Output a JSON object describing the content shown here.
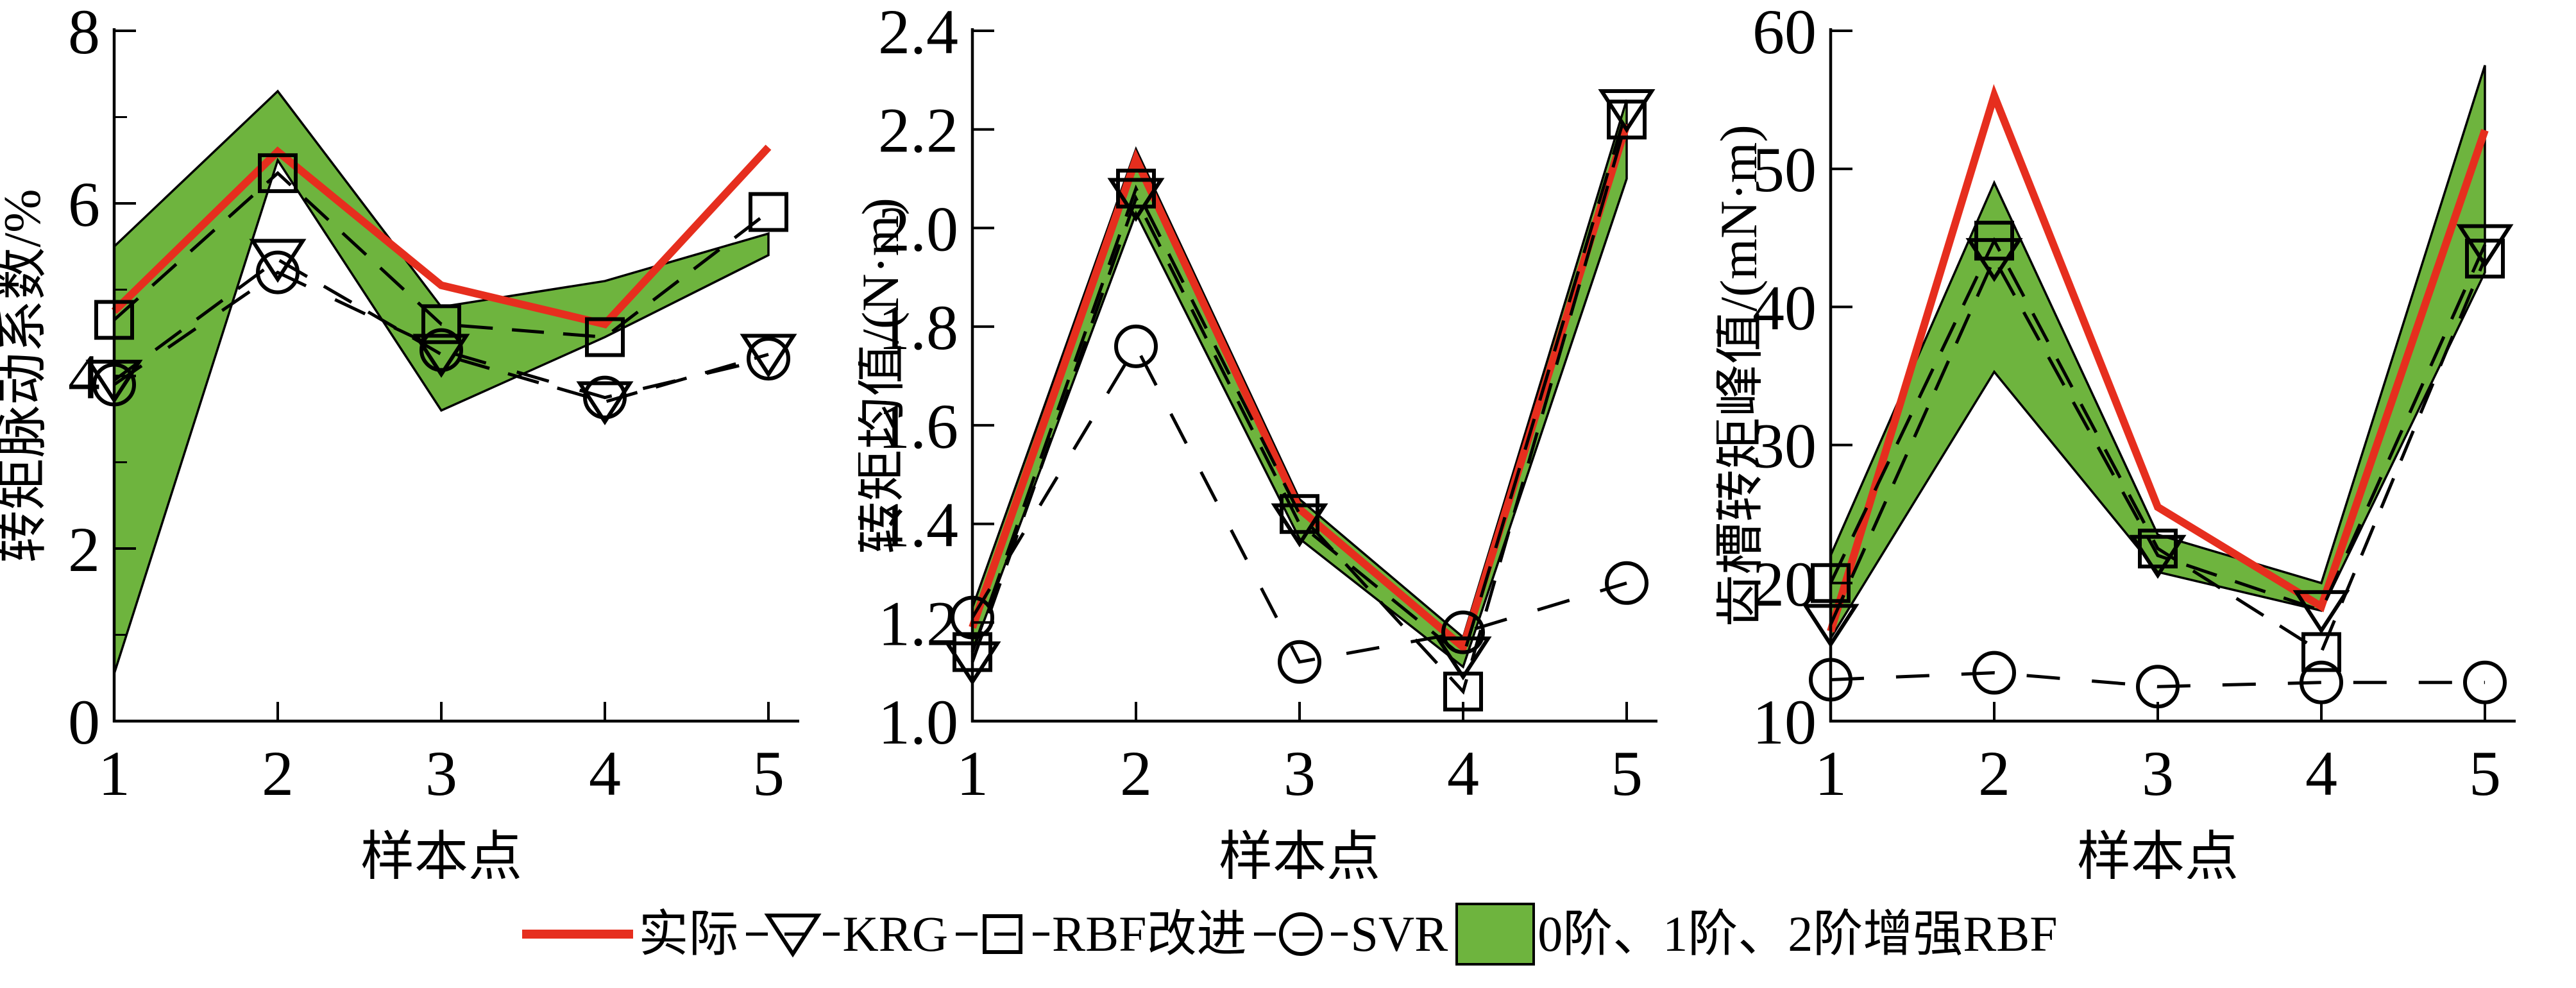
{
  "colors": {
    "actual": "#e62e1e",
    "band_fill": "#6eb43e",
    "band_stroke": "#000000",
    "line": "#000000",
    "background": "#ffffff"
  },
  "legend": {
    "items": [
      {
        "label": "实际",
        "type": "line"
      },
      {
        "label": "KRG",
        "type": "marker",
        "marker": "triangle-down"
      },
      {
        "label": "RBF改进",
        "type": "marker",
        "marker": "square"
      },
      {
        "label": "SVR",
        "type": "marker",
        "marker": "circle"
      },
      {
        "label": "0阶、1阶、2阶增强RBF",
        "type": "band"
      }
    ]
  },
  "chart_data": [
    {
      "type": "line",
      "title": "",
      "xlabel": "样本点",
      "ylabel": "转矩脉动系数/%",
      "categories": [
        "1",
        "2",
        "3",
        "4",
        "5"
      ],
      "ylim": [
        0,
        8
      ],
      "yticks": [
        {
          "v": 0,
          "label": "0"
        },
        {
          "v": 2,
          "label": "2"
        },
        {
          "v": 4,
          "label": "4"
        },
        {
          "v": 6,
          "label": "6"
        },
        {
          "v": 8,
          "label": "8"
        }
      ],
      "minor_yticks": [
        1,
        3,
        5,
        7
      ],
      "grid": false,
      "series": [
        {
          "name": "实际",
          "style": "solid",
          "marker": "none",
          "values": [
            4.75,
            6.6,
            5.05,
            4.6,
            6.65
          ]
        },
        {
          "name": "KRG",
          "style": "dashed",
          "marker": "triangle-down",
          "values": [
            3.95,
            5.35,
            4.25,
            3.7,
            4.25
          ]
        },
        {
          "name": "RBF改进",
          "style": "dashed",
          "marker": "square",
          "values": [
            4.65,
            6.35,
            4.6,
            4.45,
            5.9
          ]
        },
        {
          "name": "SVR",
          "style": "dashed",
          "marker": "circle",
          "values": [
            3.9,
            5.2,
            4.3,
            3.75,
            4.2
          ]
        }
      ],
      "band": {
        "name": "0阶、1阶、2阶增强RBF",
        "low": [
          0.55,
          6.5,
          3.6,
          4.45,
          5.4
        ],
        "high": [
          5.5,
          7.3,
          4.8,
          5.1,
          5.65
        ]
      }
    },
    {
      "type": "line",
      "title": "",
      "xlabel": "样本点",
      "ylabel": "转矩均值/(N·m)",
      "categories": [
        "1",
        "2",
        "3",
        "4",
        "5"
      ],
      "ylim": [
        1.0,
        2.4
      ],
      "yticks": [
        {
          "v": 1.0,
          "label": "1.0"
        },
        {
          "v": 1.2,
          "label": "1.2"
        },
        {
          "v": 1.4,
          "label": "1.4"
        },
        {
          "v": 1.6,
          "label": "1.6"
        },
        {
          "v": 1.8,
          "label": "1.8"
        },
        {
          "v": 2.0,
          "label": "2.0"
        },
        {
          "v": 2.2,
          "label": "2.2"
        },
        {
          "v": 2.4,
          "label": "2.4"
        }
      ],
      "minor_yticks": [],
      "grid": false,
      "series": [
        {
          "name": "实际",
          "style": "solid",
          "marker": "none",
          "values": [
            1.19,
            2.14,
            1.43,
            1.15,
            2.21
          ]
        },
        {
          "name": "KRG",
          "style": "dashed",
          "marker": "triangle-down",
          "values": [
            1.12,
            2.06,
            1.4,
            1.13,
            2.24
          ]
        },
        {
          "name": "RBF改进",
          "style": "dashed",
          "marker": "square",
          "values": [
            1.14,
            2.08,
            1.42,
            1.06,
            2.22
          ]
        },
        {
          "name": "SVR",
          "style": "dashed",
          "marker": "circle",
          "values": [
            1.21,
            1.76,
            1.12,
            1.18,
            1.28
          ]
        }
      ],
      "band": {
        "name": "0阶、1阶、2阶增强RBF",
        "low": [
          1.14,
          2.03,
          1.37,
          1.11,
          2.1
        ],
        "high": [
          1.23,
          2.16,
          1.45,
          1.17,
          2.26
        ]
      }
    },
    {
      "type": "line",
      "title": "",
      "xlabel": "样本点",
      "ylabel": "齿槽转矩峰值/(mN·m)",
      "categories": [
        "1",
        "2",
        "3",
        "4",
        "5"
      ],
      "ylim": [
        10,
        60
      ],
      "yticks": [
        {
          "v": 10,
          "label": "10"
        },
        {
          "v": 20,
          "label": "20"
        },
        {
          "v": 30,
          "label": "30"
        },
        {
          "v": 40,
          "label": "40"
        },
        {
          "v": 50,
          "label": "50"
        },
        {
          "v": 60,
          "label": "60"
        }
      ],
      "minor_yticks": [],
      "grid": false,
      "series": [
        {
          "name": "实际",
          "style": "solid",
          "marker": "none",
          "values": [
            16.5,
            55.3,
            25.5,
            18.3,
            52.8
          ]
        },
        {
          "name": "KRG",
          "style": "dashed",
          "marker": "triangle-down",
          "values": [
            17,
            43.5,
            22,
            18,
            44.5
          ]
        },
        {
          "name": "RBF改进",
          "style": "dashed",
          "marker": "square",
          "values": [
            20,
            44.8,
            22.5,
            15,
            43.5
          ]
        },
        {
          "name": "SVR",
          "style": "dashed",
          "marker": "circle",
          "values": [
            13,
            13.5,
            12.5,
            12.8,
            12.8
          ]
        }
      ],
      "band": {
        "name": "0阶、1阶、2阶增强RBF",
        "low": [
          16,
          35.3,
          20.8,
          18,
          42.5
        ],
        "high": [
          22,
          49,
          23.5,
          20,
          57.5
        ]
      }
    }
  ]
}
